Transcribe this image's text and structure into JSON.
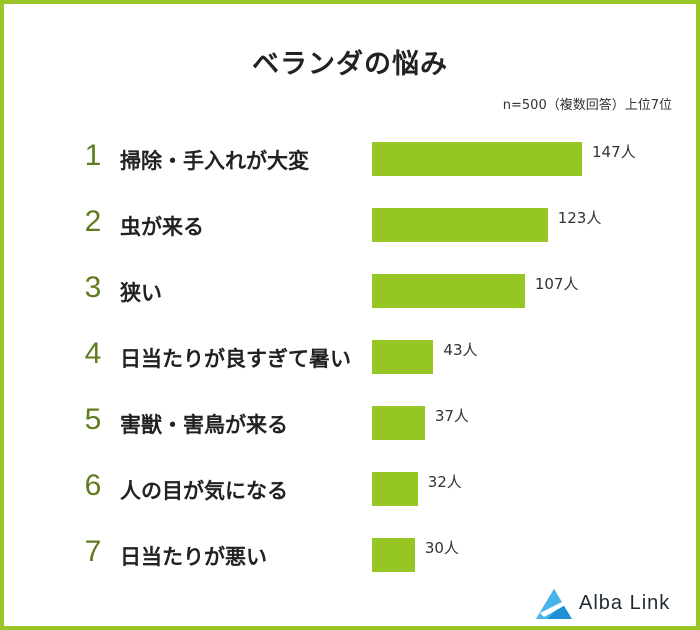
{
  "chart_data": {
    "type": "bar",
    "title": "ベランダの悩み",
    "subtitle": "n=500（複数回答）上位7位",
    "ranks": [
      "1",
      "2",
      "3",
      "4",
      "5",
      "6",
      "7"
    ],
    "categories": [
      "掃除・手入れが大変",
      "虫が来る",
      "狭い",
      "日当たりが良すぎて暑い",
      "害獣・害鳥が来る",
      "人の目が気になる",
      "日当たりが悪い"
    ],
    "values": [
      147,
      123,
      107,
      43,
      37,
      32,
      30
    ],
    "value_labels": [
      "147人",
      "123人",
      "107人",
      "43人",
      "37人",
      "32人",
      "30人"
    ],
    "xlim": [
      0,
      147
    ],
    "grid": false,
    "bar_color": "#95c623"
  },
  "brand": {
    "name": "Alba Link"
  },
  "colors": {
    "frame": "#9ac526",
    "rank": "#5f7d1e",
    "logo_blue": "#1e90d6"
  }
}
